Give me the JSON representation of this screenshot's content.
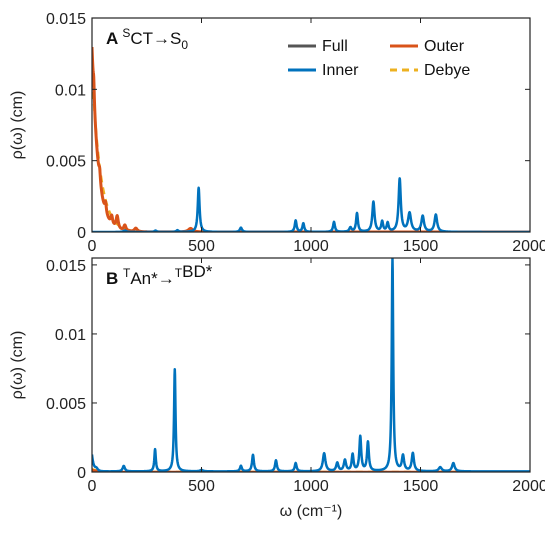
{
  "chart_data": [
    {
      "type": "line",
      "panel_letter": "A",
      "title_parts": {
        "pre1": "",
        "sup1": "S",
        "mid": "CT→S",
        "sub": "0",
        "sup2": "",
        "post": ""
      },
      "xlabel": "",
      "ylabel": "ρ(ω) (cm)",
      "xlim": [
        0,
        2000
      ],
      "ylim": [
        0,
        0.015
      ],
      "xticks": [
        0,
        500,
        1000,
        1500,
        2000
      ],
      "xtick_labels": [
        "0",
        "500",
        "1000",
        "1500",
        "2000"
      ],
      "yticks": [
        0,
        0.005,
        0.01,
        0.015
      ],
      "ytick_labels": [
        "0",
        "0.005",
        "0.01",
        "0.015"
      ],
      "grid": false,
      "legend_placement": "top-right",
      "legend": [
        {
          "label": "Full",
          "color": "#555555",
          "style": "solid"
        },
        {
          "label": "Outer",
          "color": "#d95319",
          "style": "solid"
        },
        {
          "label": "Inner",
          "color": "#0072bd",
          "style": "solid"
        },
        {
          "label": "Debye",
          "color": "#edb120",
          "style": "dashed"
        }
      ],
      "series": [
        {
          "name": "Debye",
          "color": "#edb120",
          "dashed": true,
          "width": 2.5,
          "baseline": 0.0,
          "decay": {
            "amp": 0.0115,
            "tau": 38
          }
        },
        {
          "name": "Outer",
          "color": "#d95319",
          "width": 3,
          "baseline": 0.0,
          "decay": {
            "amp": 0.0128,
            "tau": 28
          },
          "peaks": [
            {
              "x": 8,
              "h": 0.0012,
              "w": 3
            },
            {
              "x": 35,
              "h": 0.0008,
              "w": 4
            },
            {
              "x": 62,
              "h": 0.0007,
              "w": 4
            },
            {
              "x": 90,
              "h": 0.0006,
              "w": 5
            },
            {
              "x": 115,
              "h": 0.0009,
              "w": 6
            },
            {
              "x": 150,
              "h": 0.0004,
              "w": 6
            },
            {
              "x": 200,
              "h": 0.00025,
              "w": 8
            },
            {
              "x": 450,
              "h": 0.00025,
              "w": 12
            }
          ]
        },
        {
          "name": "Inner",
          "color": "#0072bd",
          "width": 2.5,
          "baseline": 0.0,
          "decay": {
            "amp": 0.0,
            "tau": 30
          },
          "peaks": [
            {
              "x": 150,
              "h": 0.0001,
              "w": 8
            },
            {
              "x": 290,
              "h": 0.0001,
              "w": 6
            },
            {
              "x": 390,
              "h": 0.00012,
              "w": 6
            },
            {
              "x": 487,
              "h": 0.0031,
              "w": 5
            },
            {
              "x": 680,
              "h": 0.0003,
              "w": 6
            },
            {
              "x": 930,
              "h": 0.0008,
              "w": 5
            },
            {
              "x": 965,
              "h": 0.0006,
              "w": 5
            },
            {
              "x": 1105,
              "h": 0.0007,
              "w": 5
            },
            {
              "x": 1180,
              "h": 0.0003,
              "w": 6
            },
            {
              "x": 1210,
              "h": 0.0013,
              "w": 5
            },
            {
              "x": 1285,
              "h": 0.0021,
              "w": 6
            },
            {
              "x": 1325,
              "h": 0.0007,
              "w": 5
            },
            {
              "x": 1350,
              "h": 0.0006,
              "w": 5
            },
            {
              "x": 1405,
              "h": 0.0037,
              "w": 6
            },
            {
              "x": 1450,
              "h": 0.0013,
              "w": 8
            },
            {
              "x": 1510,
              "h": 0.0011,
              "w": 7
            },
            {
              "x": 1570,
              "h": 0.0012,
              "w": 7
            }
          ]
        }
      ]
    },
    {
      "type": "line",
      "panel_letter": "B",
      "title_parts": {
        "pre1": "",
        "sup1": "T",
        "mid": "An*→",
        "sub": "",
        "sup2": "T",
        "post": "BD*"
      },
      "xlabel": "ω (cm⁻¹)",
      "ylabel": "ρ(ω) (cm)",
      "xlim": [
        0,
        2000
      ],
      "ylim": [
        0,
        0.0155
      ],
      "xticks": [
        0,
        500,
        1000,
        1500,
        2000
      ],
      "xtick_labels": [
        "0",
        "500",
        "1000",
        "1500",
        "2000"
      ],
      "yticks": [
        0,
        0.005,
        0.01,
        0.015
      ],
      "ytick_labels": [
        "0",
        "0.005",
        "0.01",
        "0.015"
      ],
      "grid": false,
      "series": [
        {
          "name": "Debye",
          "color": "#edb120",
          "dashed": true,
          "width": 2.5,
          "baseline": 0.0,
          "decay": {
            "amp": 0.0002,
            "tau": 40
          }
        },
        {
          "name": "Outer",
          "color": "#d95319",
          "width": 2.5,
          "baseline": 0.0,
          "decay": {
            "amp": 0.00015,
            "tau": 30
          }
        },
        {
          "name": "Inner",
          "color": "#0072bd",
          "width": 2.5,
          "baseline": 4e-05,
          "decay": {
            "amp": 0.0012,
            "tau": 8
          },
          "peaks": [
            {
              "x": 20,
              "h": 0.0002,
              "w": 8
            },
            {
              "x": 145,
              "h": 0.0004,
              "w": 6
            },
            {
              "x": 288,
              "h": 0.0016,
              "w": 4
            },
            {
              "x": 378,
              "h": 0.0074,
              "w": 4
            },
            {
              "x": 500,
              "h": 0.0001,
              "w": 8
            },
            {
              "x": 680,
              "h": 0.0004,
              "w": 5
            },
            {
              "x": 735,
              "h": 0.0012,
              "w": 5
            },
            {
              "x": 840,
              "h": 0.0008,
              "w": 5
            },
            {
              "x": 930,
              "h": 0.0006,
              "w": 5
            },
            {
              "x": 1060,
              "h": 0.0013,
              "w": 7
            },
            {
              "x": 1120,
              "h": 0.0006,
              "w": 6
            },
            {
              "x": 1155,
              "h": 0.0008,
              "w": 6
            },
            {
              "x": 1190,
              "h": 0.0012,
              "w": 5
            },
            {
              "x": 1225,
              "h": 0.0025,
              "w": 5
            },
            {
              "x": 1260,
              "h": 0.0021,
              "w": 5
            },
            {
              "x": 1372,
              "h": 0.0154,
              "w": 4
            },
            {
              "x": 1420,
              "h": 0.0011,
              "w": 6
            },
            {
              "x": 1465,
              "h": 0.0013,
              "w": 6
            },
            {
              "x": 1590,
              "h": 0.0003,
              "w": 8
            },
            {
              "x": 1650,
              "h": 0.0006,
              "w": 7
            }
          ]
        }
      ]
    }
  ]
}
